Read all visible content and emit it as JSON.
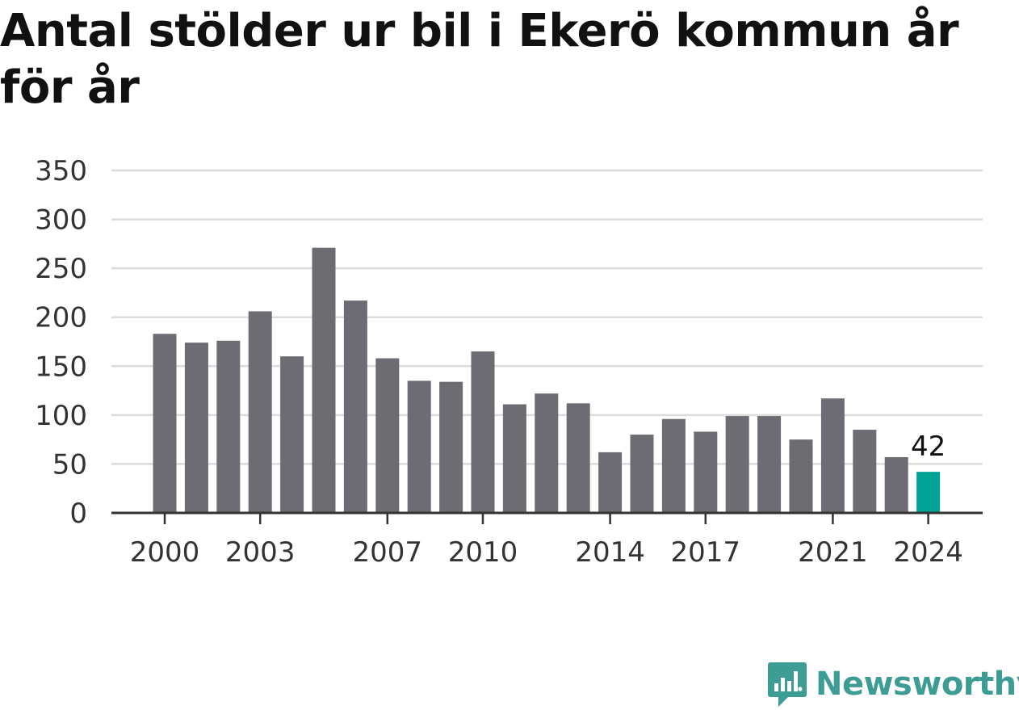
{
  "title": "Antal stölder ur bil i Ekerö kommun år för år",
  "brand": {
    "name": "Newsworthy",
    "color": "#3d9d94",
    "icon": "newsworthy-chart-icon"
  },
  "colors": {
    "bar": "#6d6c73",
    "highlight": "#00a396",
    "grid": "#dcdcdc",
    "axis": "#333333"
  },
  "chart_data": {
    "type": "bar",
    "title": "Antal stölder ur bil i Ekerö kommun år för år",
    "xlabel": "",
    "ylabel": "",
    "categories": [
      "2000",
      "2001",
      "2002",
      "2003",
      "2004",
      "2005",
      "2006",
      "2007",
      "2008",
      "2009",
      "2010",
      "2011",
      "2012",
      "2013",
      "2014",
      "2015",
      "2016",
      "2017",
      "2018",
      "2019",
      "2020",
      "2021",
      "2022",
      "2023",
      "2024"
    ],
    "values": [
      183,
      174,
      176,
      206,
      160,
      271,
      217,
      158,
      135,
      134,
      165,
      111,
      122,
      112,
      62,
      80,
      96,
      83,
      99,
      99,
      75,
      117,
      85,
      57,
      42
    ],
    "highlight_index": 24,
    "highlight_label": "42",
    "ylim": [
      0,
      350
    ],
    "yticks": [
      "0",
      "50",
      "100",
      "150",
      "200",
      "250",
      "300",
      "350"
    ],
    "xtick_labels": [
      "2000",
      "2003",
      "2007",
      "2010",
      "2014",
      "2017",
      "2021",
      "2024"
    ],
    "grid": true,
    "legend": "none"
  }
}
